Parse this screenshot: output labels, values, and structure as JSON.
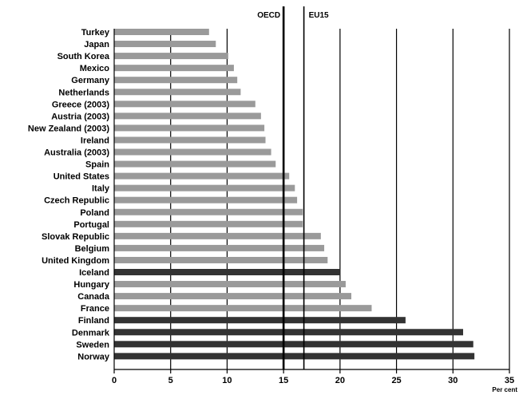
{
  "chart_data": {
    "type": "bar",
    "orientation": "horizontal",
    "categories": [
      "Turkey",
      "Japan",
      "South Korea",
      "Mexico",
      "Germany",
      "Netherlands",
      "Greece (2003)",
      "Austria (2003)",
      "New Zealand (2003)",
      "Ireland",
      "Australia (2003)",
      "Spain",
      "United States",
      "Italy",
      "Czech Republic",
      "Poland",
      "Portugal",
      "Slovak Republic",
      "Belgium",
      "United Kingdom",
      "Iceland",
      "Hungary",
      "Canada",
      "France",
      "Finland",
      "Denmark",
      "Sweden",
      "Norway"
    ],
    "values": [
      8.4,
      9.0,
      10.1,
      10.6,
      10.9,
      11.2,
      12.5,
      13.0,
      13.3,
      13.4,
      13.9,
      14.3,
      15.5,
      16.0,
      16.2,
      16.7,
      16.7,
      18.3,
      18.6,
      18.9,
      20.0,
      20.5,
      21.0,
      22.8,
      25.8,
      30.9,
      31.8,
      31.9
    ],
    "highlighted": [
      "Iceland",
      "Finland",
      "Denmark",
      "Sweden",
      "Norway"
    ],
    "xlim": [
      0,
      35
    ],
    "xticks": [
      0,
      5,
      10,
      15,
      20,
      25,
      30,
      35
    ],
    "xlabel": "Per cent",
    "ylabel": "",
    "title": "",
    "grid": "vertical",
    "reference_lines": [
      {
        "label": "OECD",
        "value": 15.0
      },
      {
        "label": "EU15",
        "value": 16.8
      }
    ],
    "colors": {
      "bar": "#9a9a9a",
      "highlight": "#333333",
      "grid": "#000000"
    }
  }
}
